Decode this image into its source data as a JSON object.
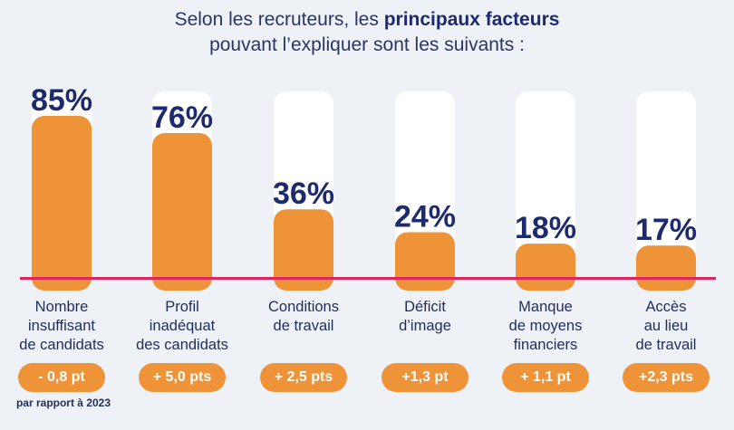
{
  "title": {
    "line1_prefix": "Selon les recruteurs, les ",
    "line1_bold": "principaux facteurs",
    "line2": "pouvant l’expliquer sont les suivants :"
  },
  "note": "par rapport à 2023",
  "colors": {
    "bar": "#ee9338",
    "track": "#ffffff",
    "baseline": "#e0245e",
    "value_text": "#1e2a6e"
  },
  "chart_data": {
    "type": "bar",
    "categories": [
      [
        "Nombre",
        "insuffisant",
        "de candidats"
      ],
      [
        "Profil",
        "inadéquat",
        "des candidats"
      ],
      [
        "Conditions",
        "de travail"
      ],
      [
        "Déficit",
        "d’image"
      ],
      [
        "Manque",
        "de moyens",
        "financiers"
      ],
      [
        "Accès",
        "au lieu",
        "de travail"
      ]
    ],
    "values": [
      85,
      76,
      36,
      24,
      18,
      17
    ],
    "value_labels": [
      "85%",
      "76%",
      "36%",
      "24%",
      "18%",
      "17%"
    ],
    "changes": [
      "- 0,8 pt",
      "+ 5,0 pts",
      "+ 2,5 pts",
      "+1,3 pt",
      "+ 1,1 pt",
      "+2,3 pts"
    ],
    "ylim": [
      0,
      100
    ]
  }
}
